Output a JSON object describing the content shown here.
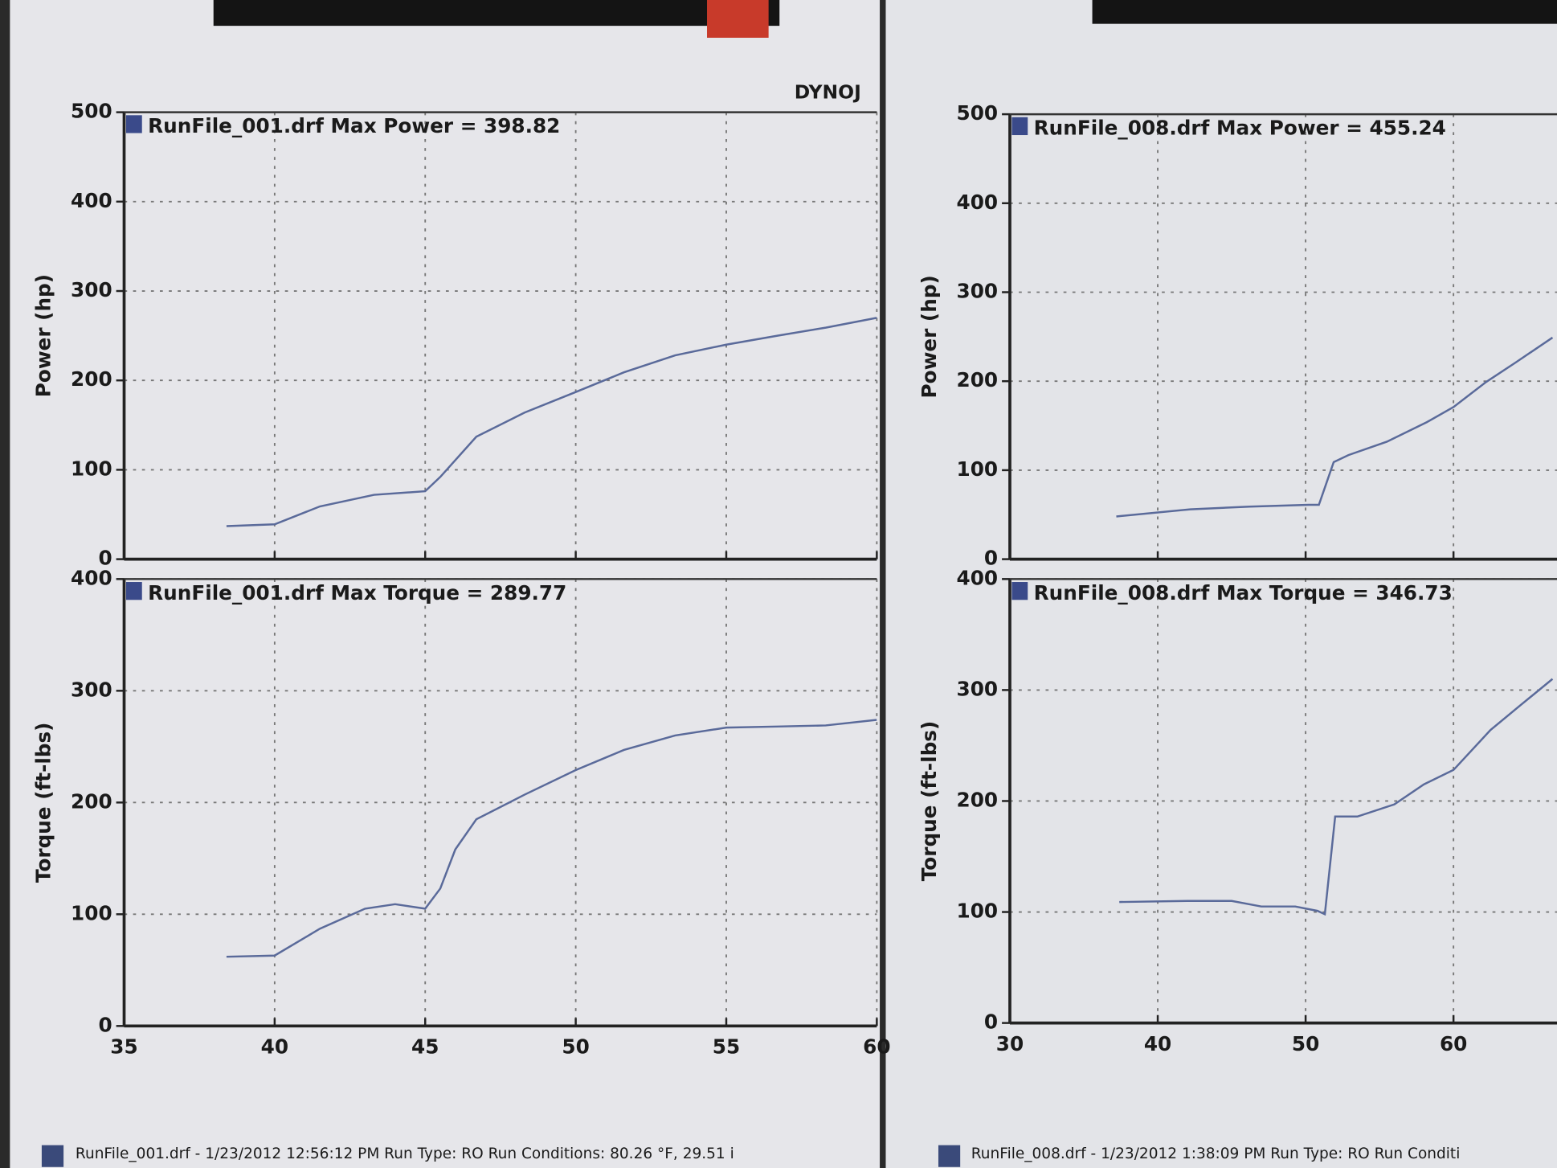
{
  "header": "DYNOJ",
  "footers": [
    "RunFile_001.drf - 1/23/2012 12:56:12 PM  Run Type: RO  Run Conditions: 80.26 °F, 29.51 i",
    "RunFile_008.drf - 1/23/2012 1:38:09 PM  Run Type: RO  Run Conditi"
  ],
  "chart_data": [
    {
      "type": "line",
      "title": "RunFile_001.drf Max Power = 398.82",
      "y_label": "Power (hp)",
      "color": "#5a6a9a",
      "grid": true,
      "x": [
        38.4,
        40,
        41.5,
        43.3,
        45,
        45.5,
        46.7,
        48.3,
        50,
        51.6,
        53.3,
        55,
        56.7,
        58.3,
        60
      ],
      "values": [
        37,
        39,
        59,
        72,
        76,
        92,
        137,
        164,
        187,
        209,
        228,
        240,
        250,
        259,
        270
      ],
      "xlim": [
        35,
        60
      ],
      "xticks": [
        35,
        40,
        45,
        50,
        55,
        60
      ],
      "ylim": [
        0,
        500
      ],
      "yticks": [
        0,
        100,
        200,
        300,
        400,
        500
      ]
    },
    {
      "type": "line",
      "title": "RunFile_001.drf Max Torque = 289.77",
      "y_label": "Torque (ft-lbs)",
      "color": "#5a6a9a",
      "grid": true,
      "x": [
        38.4,
        40,
        41.5,
        43,
        44,
        45,
        45.5,
        46,
        46.7,
        48.3,
        50,
        51.6,
        53.3,
        55,
        56.7,
        58.3,
        60
      ],
      "values": [
        62,
        63,
        87,
        105,
        109,
        105,
        123,
        158,
        185,
        207,
        229,
        247,
        260,
        267,
        268,
        269,
        274
      ],
      "xlim": [
        35,
        60
      ],
      "xticks": [
        35,
        40,
        45,
        50,
        55,
        60
      ],
      "ylim": [
        0,
        400
      ],
      "yticks": [
        0,
        100,
        200,
        300,
        400
      ]
    },
    {
      "type": "line",
      "title": "RunFile_008.drf Max Power = 455.24",
      "y_label": "Power (hp)",
      "color": "#5a6a9a",
      "grid": true,
      "x": [
        37.2,
        42.2,
        46.2,
        50.2,
        50.9,
        51.9,
        52.9,
        55.5,
        58.2,
        60,
        62.2,
        64.2,
        66.7
      ],
      "values": [
        48,
        56,
        59,
        61,
        61,
        109,
        117,
        132,
        154,
        171,
        199,
        221,
        249
      ],
      "xlim": [
        30,
        67
      ],
      "xticks": [
        30,
        40,
        50,
        60
      ],
      "ylim": [
        0,
        500
      ],
      "yticks": [
        0,
        100,
        200,
        300,
        400,
        500
      ]
    },
    {
      "type": "line",
      "title": "RunFile_008.drf Max Torque = 346.73",
      "y_label": "Torque (ft-lbs)",
      "color": "#5a6a9a",
      "grid": true,
      "x": [
        37.4,
        42,
        45,
        47,
        49.3,
        50.8,
        51.3,
        52,
        53.5,
        56,
        58,
        60,
        62.5,
        64.5,
        66.7
      ],
      "values": [
        109,
        110,
        110,
        105,
        105,
        101,
        98,
        186,
        186,
        197,
        215,
        228,
        264,
        286,
        310
      ],
      "xlim": [
        30,
        67
      ],
      "xticks": [
        30,
        40,
        50,
        60
      ],
      "ylim": [
        0,
        400
      ],
      "yticks": [
        0,
        100,
        200,
        300,
        400
      ]
    }
  ]
}
